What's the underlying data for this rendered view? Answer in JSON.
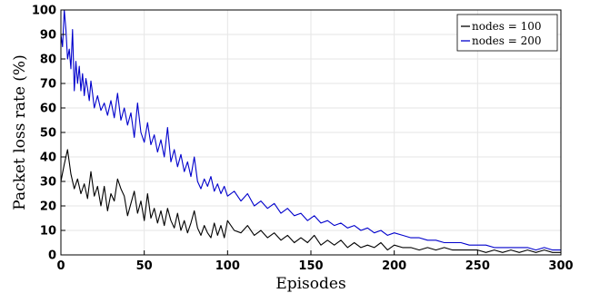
{
  "chart_data": {
    "type": "line",
    "xlabel": "Episodes",
    "ylabel": "Packet loss rate (%)",
    "xlim": [
      0,
      300
    ],
    "ylim": [
      0,
      100
    ],
    "xticks": [
      "0",
      "50",
      "100",
      "150",
      "200",
      "250",
      "300"
    ],
    "yticks": [
      "0",
      "10",
      "20",
      "30",
      "40",
      "50",
      "60",
      "70",
      "80",
      "90",
      "100"
    ],
    "grid": true,
    "legend_position": "top-right",
    "series": [
      {
        "name": "nodes = 100",
        "color": "#000000",
        "points": [
          [
            0,
            30
          ],
          [
            2,
            37
          ],
          [
            4,
            43
          ],
          [
            6,
            33
          ],
          [
            8,
            27
          ],
          [
            10,
            31
          ],
          [
            12,
            25
          ],
          [
            14,
            29
          ],
          [
            16,
            23
          ],
          [
            18,
            34
          ],
          [
            20,
            24
          ],
          [
            22,
            28
          ],
          [
            24,
            20
          ],
          [
            26,
            28
          ],
          [
            28,
            18
          ],
          [
            30,
            25
          ],
          [
            32,
            22
          ],
          [
            34,
            31
          ],
          [
            36,
            27
          ],
          [
            38,
            24
          ],
          [
            40,
            16
          ],
          [
            42,
            21
          ],
          [
            44,
            26
          ],
          [
            46,
            17
          ],
          [
            48,
            22
          ],
          [
            50,
            14
          ],
          [
            52,
            25
          ],
          [
            54,
            15
          ],
          [
            56,
            19
          ],
          [
            58,
            13
          ],
          [
            60,
            18
          ],
          [
            62,
            12
          ],
          [
            64,
            19
          ],
          [
            66,
            14
          ],
          [
            68,
            11
          ],
          [
            70,
            17
          ],
          [
            72,
            10
          ],
          [
            74,
            14
          ],
          [
            76,
            9
          ],
          [
            78,
            13
          ],
          [
            80,
            18
          ],
          [
            82,
            11
          ],
          [
            84,
            8
          ],
          [
            86,
            12
          ],
          [
            88,
            9
          ],
          [
            90,
            7
          ],
          [
            92,
            13
          ],
          [
            94,
            8
          ],
          [
            96,
            12
          ],
          [
            98,
            7
          ],
          [
            100,
            14
          ],
          [
            104,
            10
          ],
          [
            108,
            9
          ],
          [
            112,
            12
          ],
          [
            116,
            8
          ],
          [
            120,
            10
          ],
          [
            124,
            7
          ],
          [
            128,
            9
          ],
          [
            132,
            6
          ],
          [
            136,
            8
          ],
          [
            140,
            5
          ],
          [
            144,
            7
          ],
          [
            148,
            5
          ],
          [
            152,
            8
          ],
          [
            156,
            4
          ],
          [
            160,
            6
          ],
          [
            164,
            4
          ],
          [
            168,
            6
          ],
          [
            172,
            3
          ],
          [
            176,
            5
          ],
          [
            180,
            3
          ],
          [
            184,
            4
          ],
          [
            188,
            3
          ],
          [
            192,
            5
          ],
          [
            196,
            2
          ],
          [
            200,
            4
          ],
          [
            205,
            3
          ],
          [
            210,
            3
          ],
          [
            215,
            2
          ],
          [
            220,
            3
          ],
          [
            225,
            2
          ],
          [
            230,
            3
          ],
          [
            235,
            2
          ],
          [
            240,
            2
          ],
          [
            245,
            2
          ],
          [
            250,
            2
          ],
          [
            255,
            1
          ],
          [
            260,
            2
          ],
          [
            265,
            1
          ],
          [
            270,
            2
          ],
          [
            275,
            1
          ],
          [
            280,
            2
          ],
          [
            285,
            1
          ],
          [
            290,
            2
          ],
          [
            295,
            1
          ],
          [
            300,
            1
          ]
        ]
      },
      {
        "name": "nodes = 200",
        "color": "#0000cc",
        "points": [
          [
            0,
            90
          ],
          [
            1,
            85
          ],
          [
            2,
            100
          ],
          [
            3,
            92
          ],
          [
            4,
            80
          ],
          [
            5,
            84
          ],
          [
            6,
            76
          ],
          [
            7,
            92
          ],
          [
            8,
            67
          ],
          [
            9,
            79
          ],
          [
            10,
            70
          ],
          [
            11,
            77
          ],
          [
            12,
            67
          ],
          [
            13,
            74
          ],
          [
            14,
            65
          ],
          [
            15,
            72
          ],
          [
            16,
            68
          ],
          [
            17,
            63
          ],
          [
            18,
            71
          ],
          [
            19,
            66
          ],
          [
            20,
            60
          ],
          [
            22,
            65
          ],
          [
            24,
            59
          ],
          [
            26,
            62
          ],
          [
            28,
            57
          ],
          [
            30,
            63
          ],
          [
            32,
            56
          ],
          [
            34,
            66
          ],
          [
            36,
            55
          ],
          [
            38,
            60
          ],
          [
            40,
            53
          ],
          [
            42,
            58
          ],
          [
            44,
            48
          ],
          [
            46,
            62
          ],
          [
            48,
            50
          ],
          [
            50,
            46
          ],
          [
            52,
            54
          ],
          [
            54,
            45
          ],
          [
            56,
            49
          ],
          [
            58,
            42
          ],
          [
            60,
            47
          ],
          [
            62,
            40
          ],
          [
            64,
            52
          ],
          [
            66,
            38
          ],
          [
            68,
            43
          ],
          [
            70,
            36
          ],
          [
            72,
            41
          ],
          [
            74,
            34
          ],
          [
            76,
            38
          ],
          [
            78,
            32
          ],
          [
            80,
            40
          ],
          [
            82,
            30
          ],
          [
            84,
            27
          ],
          [
            86,
            31
          ],
          [
            88,
            28
          ],
          [
            90,
            32
          ],
          [
            92,
            26
          ],
          [
            94,
            29
          ],
          [
            96,
            25
          ],
          [
            98,
            28
          ],
          [
            100,
            24
          ],
          [
            104,
            26
          ],
          [
            108,
            22
          ],
          [
            112,
            25
          ],
          [
            116,
            20
          ],
          [
            120,
            22
          ],
          [
            124,
            19
          ],
          [
            128,
            21
          ],
          [
            132,
            17
          ],
          [
            136,
            19
          ],
          [
            140,
            16
          ],
          [
            144,
            17
          ],
          [
            148,
            14
          ],
          [
            152,
            16
          ],
          [
            156,
            13
          ],
          [
            160,
            14
          ],
          [
            164,
            12
          ],
          [
            168,
            13
          ],
          [
            172,
            11
          ],
          [
            176,
            12
          ],
          [
            180,
            10
          ],
          [
            184,
            11
          ],
          [
            188,
            9
          ],
          [
            192,
            10
          ],
          [
            196,
            8
          ],
          [
            200,
            9
          ],
          [
            205,
            8
          ],
          [
            210,
            7
          ],
          [
            215,
            7
          ],
          [
            220,
            6
          ],
          [
            225,
            6
          ],
          [
            230,
            5
          ],
          [
            235,
            5
          ],
          [
            240,
            5
          ],
          [
            245,
            4
          ],
          [
            250,
            4
          ],
          [
            255,
            4
          ],
          [
            260,
            3
          ],
          [
            265,
            3
          ],
          [
            270,
            3
          ],
          [
            275,
            3
          ],
          [
            280,
            3
          ],
          [
            285,
            2
          ],
          [
            290,
            3
          ],
          [
            295,
            2
          ],
          [
            300,
            2
          ]
        ]
      }
    ]
  }
}
